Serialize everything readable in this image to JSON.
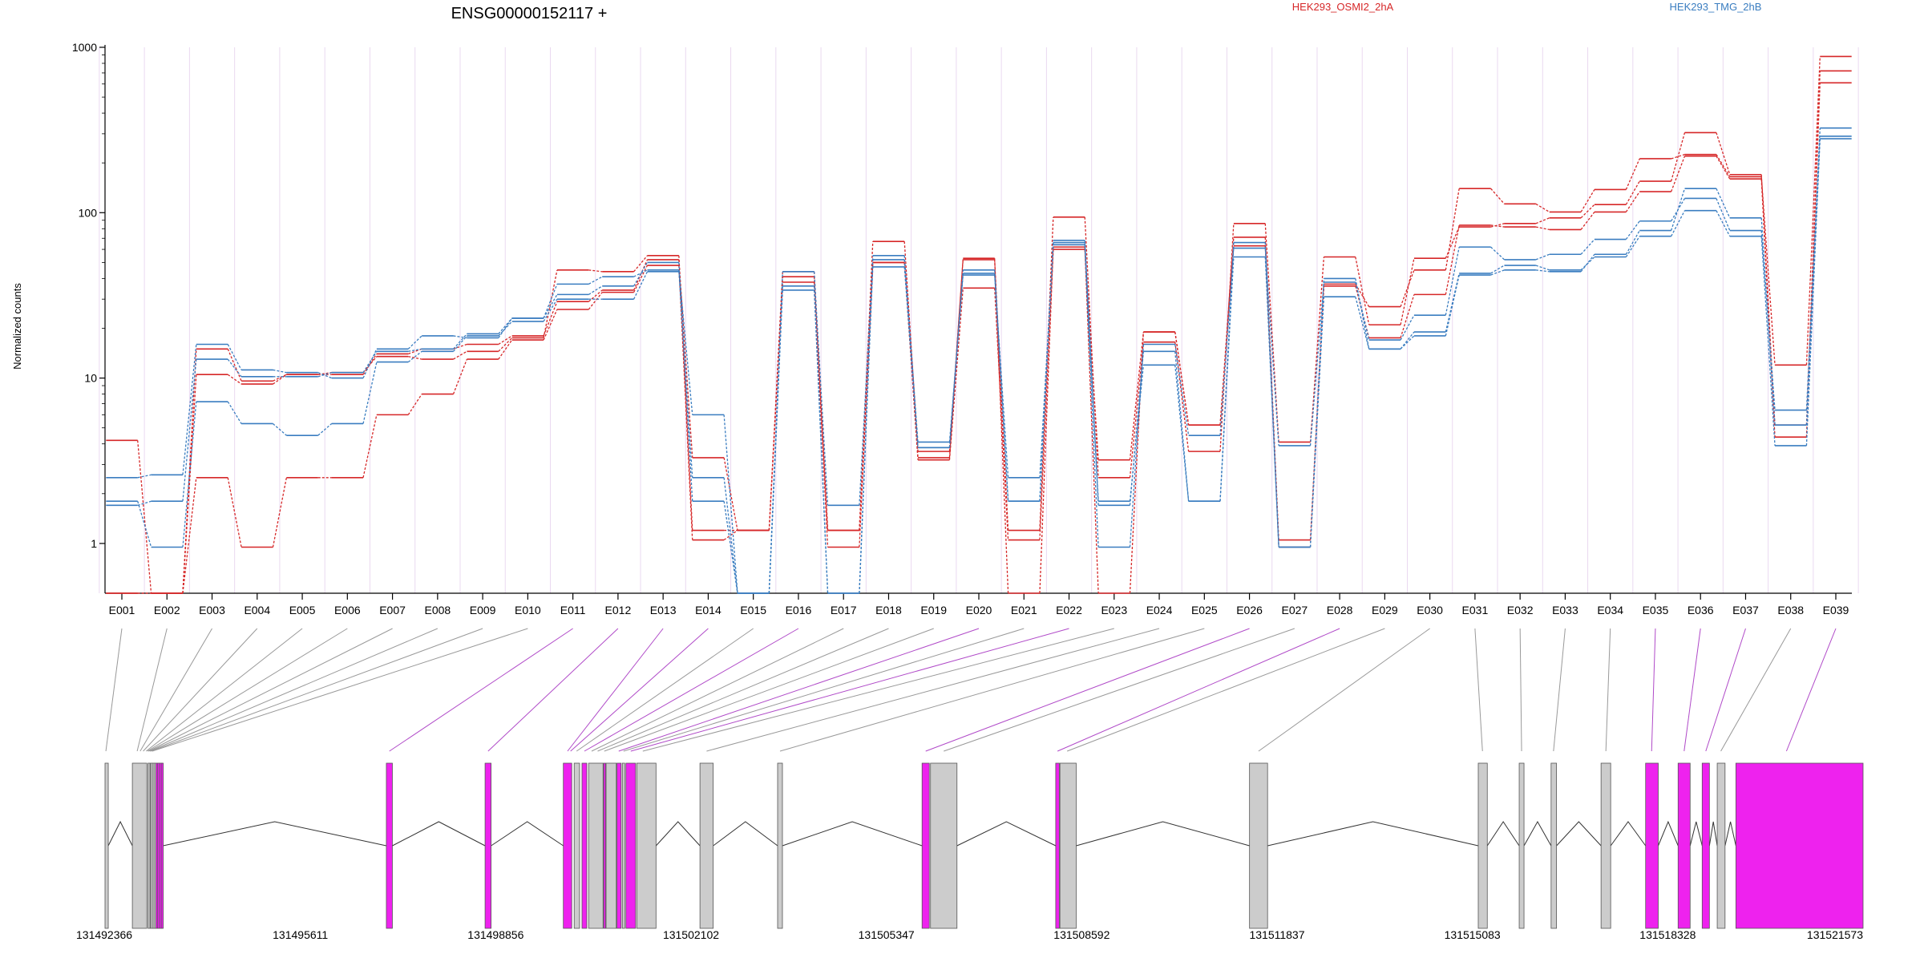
{
  "title": "ENSG00000152117 +",
  "legend": [
    {
      "label": "HEK293_OSMI2_2hA",
      "color": "#d62728"
    },
    {
      "label": "HEK293_TMG_2hB",
      "color": "#3a7dc0"
    }
  ],
  "ylabel": "Normalized counts",
  "chart_data": {
    "type": "line",
    "title": "ENSG00000152117 +",
    "ylabel": "Normalized counts",
    "yscale": "log",
    "ylim": [
      0.5,
      1000
    ],
    "yticks": [
      "1",
      "10",
      "100",
      "1000"
    ],
    "ytick_values": [
      1,
      10,
      100,
      1000
    ],
    "grid": true,
    "legend_position": "top-right",
    "categories": [
      "E001",
      "E002",
      "E003",
      "E004",
      "E005",
      "E006",
      "E007",
      "E008",
      "E009",
      "E010",
      "E011",
      "E012",
      "E013",
      "E014",
      "E015",
      "E016",
      "E017",
      "E018",
      "E019",
      "E020",
      "E021",
      "E022",
      "E023",
      "E024",
      "E025",
      "E026",
      "E027",
      "E028",
      "E029",
      "E030",
      "E031",
      "E032",
      "E033",
      "E034",
      "E035",
      "E036",
      "E037",
      "E038",
      "E039"
    ],
    "series": [
      {
        "group": "HEK293_OSMI2_2hA",
        "color": "#d62728",
        "values": [
          4.2,
          0.5,
          2.5,
          0.95,
          2.5,
          2.5,
          6,
          8,
          13,
          17,
          26,
          33,
          48,
          1.05,
          1.2,
          38,
          0.95,
          50,
          3.2,
          35,
          1.05,
          60,
          3.2,
          19,
          5.2,
          71,
          1.05,
          37,
          27,
          45,
          140,
          113,
          101,
          138,
          212,
          225,
          165,
          12,
          880
        ]
      },
      {
        "group": "HEK293_OSMI2_2hA",
        "color": "#d62728",
        "values": [
          0.5,
          0.5,
          10.5,
          9.2,
          10.5,
          10.5,
          14,
          15,
          16,
          18,
          29,
          34,
          52,
          3.3,
          1.2,
          41,
          1.2,
          67,
          3.6,
          52,
          1.2,
          94,
          2.5,
          16.5,
          3.6,
          86,
          4.1,
          54,
          21,
          53,
          82,
          86,
          93,
          112,
          155,
          305,
          170,
          5.2,
          720
        ]
      },
      {
        "group": "HEK293_OSMI2_2hA",
        "color": "#d62728",
        "values": [
          0.5,
          0.5,
          15,
          9.6,
          10.5,
          10.8,
          13.5,
          13,
          14.5,
          17.5,
          45,
          44,
          55,
          1.2,
          1.2,
          44,
          1.2,
          50,
          3.3,
          53,
          0.5,
          62,
          0.5,
          19,
          5.2,
          63,
          0.95,
          36,
          17.5,
          32,
          84,
          82,
          79,
          101,
          134,
          220,
          160,
          4.4,
          610
        ]
      },
      {
        "group": "HEK293_TMG_2hB",
        "color": "#3a7dc0",
        "values": [
          2.5,
          2.6,
          16,
          11.2,
          10.8,
          10,
          15,
          18,
          17.5,
          23,
          37,
          41,
          45,
          6,
          0.5,
          36,
          0.5,
          55,
          4.1,
          42,
          2.5,
          64,
          0.95,
          16,
          4.5,
          61,
          3.9,
          38,
          17,
          24,
          62,
          52,
          56,
          69,
          89,
          122,
          78,
          6.4,
          325
        ]
      },
      {
        "group": "HEK293_TMG_2hB",
        "color": "#3a7dc0",
        "values": [
          1.8,
          0.95,
          7.2,
          5.3,
          4.5,
          5.3,
          12.5,
          14.5,
          18,
          22,
          30,
          30,
          44,
          2.5,
          0.5,
          34,
          0.5,
          47,
          3.8,
          43,
          1.8,
          68,
          1.8,
          12,
          1.8,
          54,
          0.95,
          31,
          15,
          19,
          43,
          48,
          45,
          54,
          72,
          103,
          72,
          3.9,
          280
        ]
      },
      {
        "group": "HEK293_TMG_2hB",
        "color": "#3a7dc0",
        "values": [
          1.7,
          1.8,
          13,
          10.2,
          10.2,
          10.8,
          14.5,
          15,
          18.5,
          23,
          32,
          36,
          50,
          1.8,
          0.5,
          44,
          1.7,
          52,
          3.8,
          45,
          1.8,
          66,
          1.7,
          14.5,
          1.8,
          66,
          0.95,
          40,
          15,
          18,
          42,
          45,
          44,
          56,
          78,
          140,
          93,
          5.2,
          290
        ]
      }
    ],
    "exon_model": {
      "coordinate_labels": [
        "131492366",
        "131495611",
        "131498856",
        "131502102",
        "131505347",
        "131508592",
        "131511837",
        "131515083",
        "131518328",
        "131521573"
      ],
      "exons": [
        {
          "start": 131492366,
          "end": 131492420,
          "highlight": false
        },
        {
          "start": 131492820,
          "end": 131493060,
          "highlight": false
        },
        {
          "start": 131493080,
          "end": 131493100,
          "highlight": false
        },
        {
          "start": 131493120,
          "end": 131493140,
          "highlight": false
        },
        {
          "start": 131493150,
          "end": 131493170,
          "highlight": false
        },
        {
          "start": 131493180,
          "end": 131493200,
          "highlight": false
        },
        {
          "start": 131493210,
          "end": 131493230,
          "highlight": true
        },
        {
          "start": 131493240,
          "end": 131493260,
          "highlight": true
        },
        {
          "start": 131493270,
          "end": 131493290,
          "highlight": true
        },
        {
          "start": 131493300,
          "end": 131493330,
          "highlight": true
        },
        {
          "start": 131497040,
          "end": 131497140,
          "highlight": true
        },
        {
          "start": 131498680,
          "end": 131498780,
          "highlight": true
        },
        {
          "start": 131499980,
          "end": 131500120,
          "highlight": true
        },
        {
          "start": 131500160,
          "end": 131500250,
          "highlight": false
        },
        {
          "start": 131500290,
          "end": 131500370,
          "highlight": true
        },
        {
          "start": 131500400,
          "end": 131500640,
          "highlight": false
        },
        {
          "start": 131500650,
          "end": 131500670,
          "highlight": true
        },
        {
          "start": 131500690,
          "end": 131500860,
          "highlight": false
        },
        {
          "start": 131500870,
          "end": 131500940,
          "highlight": true
        },
        {
          "start": 131500960,
          "end": 131501000,
          "highlight": false
        },
        {
          "start": 131501020,
          "end": 131501180,
          "highlight": true
        },
        {
          "start": 131501200,
          "end": 131501520,
          "highlight": false
        },
        {
          "start": 131502250,
          "end": 131502470,
          "highlight": false
        },
        {
          "start": 131503540,
          "end": 131503620,
          "highlight": false
        },
        {
          "start": 131505940,
          "end": 131506060,
          "highlight": true
        },
        {
          "start": 131506080,
          "end": 131506520,
          "highlight": false
        },
        {
          "start": 131508160,
          "end": 131508220,
          "highlight": true
        },
        {
          "start": 131508230,
          "end": 131508500,
          "highlight": false
        },
        {
          "start": 131511380,
          "end": 131511680,
          "highlight": false
        },
        {
          "start": 131515180,
          "end": 131515330,
          "highlight": false
        },
        {
          "start": 131515860,
          "end": 131515940,
          "highlight": false
        },
        {
          "start": 131516390,
          "end": 131516480,
          "highlight": false
        },
        {
          "start": 131517220,
          "end": 131517380,
          "highlight": false
        },
        {
          "start": 131517960,
          "end": 131518170,
          "highlight": true
        },
        {
          "start": 131518500,
          "end": 131518700,
          "highlight": true
        },
        {
          "start": 131518900,
          "end": 131519020,
          "highlight": true
        },
        {
          "start": 131519150,
          "end": 131519280,
          "highlight": false
        },
        {
          "start": 131519460,
          "end": 131521573,
          "highlight": true
        }
      ],
      "connector_targets": [
        131492380,
        131492900,
        131492950,
        131493000,
        131493050,
        131493070,
        131493090,
        131493110,
        131493130,
        131493150,
        131497090,
        131498730,
        131500050,
        131500100,
        131500200,
        131500330,
        131500450,
        131500550,
        131500660,
        131500900,
        131500980,
        131501100,
        131501300,
        131502360,
        131503580,
        131506000,
        131506300,
        131508190,
        131508350,
        131511530,
        131515250,
        131515900,
        131516430,
        131517300,
        131518060,
        131518600,
        131518960,
        131519210,
        131520300
      ]
    }
  }
}
